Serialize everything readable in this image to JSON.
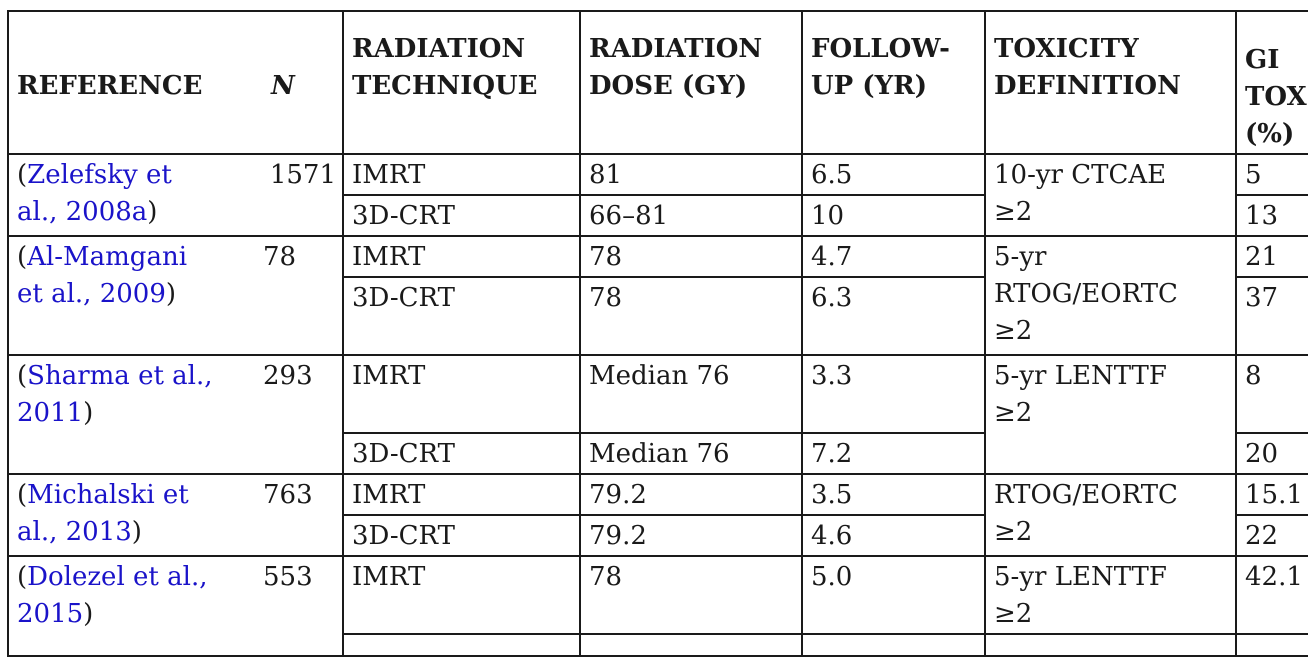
{
  "header": {
    "reference": "REFERENCE",
    "n": "N",
    "technique_l1": "RADIATION",
    "technique_l2": "TECHNIQUE",
    "dose_l1": "RADIATION",
    "dose_l2": "DOSE (GY)",
    "follow_l1": "FOLLOW-",
    "follow_l2": "UP (YR)",
    "tox_l1": "TOXICITY",
    "tox_l2": "DEFINITION",
    "gi_l1": "GI",
    "gi_l2": "TOX",
    "gi_l3": "(%)"
  },
  "rows": [
    {
      "ref_link_l1": "Zelefsky et",
      "ref_link_l2": "al., 2008a",
      "n": "1571",
      "tox_l1": "10-yr CTCAE",
      "tox_l2": "≥2",
      "arms": [
        {
          "technique": "IMRT",
          "dose": "81",
          "follow": "6.5",
          "gi": "5"
        },
        {
          "technique": "3D-CRT",
          "dose": "66–81",
          "follow": "10",
          "gi": "13"
        }
      ]
    },
    {
      "ref_link_l1": "Al-Mamgani",
      "ref_link_l2": "et al., 2009",
      "n": "78",
      "tox_l1": "5-yr",
      "tox_l2": "RTOG/EORTC",
      "tox_l3": "≥2",
      "arms": [
        {
          "technique": "IMRT",
          "dose": "78",
          "follow": "4.7",
          "gi": "21"
        },
        {
          "technique": "3D-CRT",
          "dose": "78",
          "follow": "6.3",
          "gi": "37"
        }
      ]
    },
    {
      "ref_link_l1": "Sharma et al.,",
      "ref_link_l2": "2011",
      "n": "293",
      "tox_l1": "5-yr LENTTF",
      "tox_l2": "≥2",
      "arms": [
        {
          "technique": "IMRT",
          "dose": "Median 76",
          "follow": "3.3",
          "gi": "8"
        },
        {
          "technique": "3D-CRT",
          "dose": "Median 76",
          "follow": "7.2",
          "gi": "20"
        }
      ]
    },
    {
      "ref_link_l1": "Michalski et",
      "ref_link_l2": "al., 2013",
      "n": "763",
      "tox_l1": "RTOG/EORTC",
      "tox_l2": "≥2",
      "arms": [
        {
          "technique": "IMRT",
          "dose": "79.2",
          "follow": "3.5",
          "gi": "15.1"
        },
        {
          "technique": "3D-CRT",
          "dose": "79.2",
          "follow": "4.6",
          "gi": "22"
        }
      ]
    },
    {
      "ref_link_l1": "Dolezel et al.,",
      "ref_link_l2": "2015",
      "n": "553",
      "tox_l1": "5-yr LENTTF",
      "tox_l2": "≥2",
      "arms": [
        {
          "technique": "IMRT",
          "dose": "78",
          "follow": "5.0",
          "gi": "42.1"
        }
      ]
    }
  ]
}
